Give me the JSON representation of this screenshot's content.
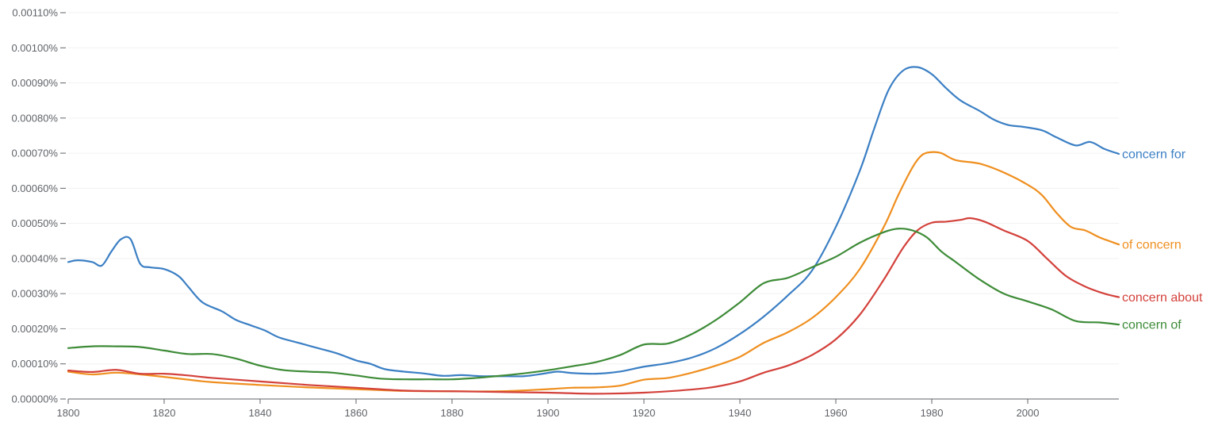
{
  "chart_data": {
    "type": "line",
    "title": "",
    "xlabel": "",
    "ylabel": "",
    "xlim": [
      1800,
      2019
    ],
    "ylim": [
      0,
      0.0011
    ],
    "grid": true,
    "x_ticks": [
      1800,
      1820,
      1840,
      1860,
      1880,
      1900,
      1920,
      1940,
      1960,
      1980,
      2000
    ],
    "x_tick_labels": [
      "1800",
      "1820",
      "1840",
      "1860",
      "1880",
      "1900",
      "1920",
      "1940",
      "1960",
      "1980",
      "2000"
    ],
    "y_ticks": [
      0,
      0.0001,
      0.0002,
      0.0003,
      0.0004,
      0.0005,
      0.0006,
      0.0007,
      0.0008,
      0.0009,
      0.001,
      0.0011
    ],
    "y_tick_labels": [
      "0.00000%",
      "0.00010%",
      "0.00020%",
      "0.00030%",
      "0.00040%",
      "0.00050%",
      "0.00060%",
      "0.00070%",
      "0.00080%",
      "0.00090%",
      "0.00100%",
      "0.00110%"
    ],
    "legend_placement": "inline-right",
    "series": [
      {
        "name": "concern for",
        "color": "#3b7fc4",
        "points": [
          [
            1800,
            0.00039
          ],
          [
            1802,
            0.000395
          ],
          [
            1805,
            0.00039
          ],
          [
            1807,
            0.00038
          ],
          [
            1809,
            0.00042
          ],
          [
            1811,
            0.000455
          ],
          [
            1813,
            0.000455
          ],
          [
            1815,
            0.000385
          ],
          [
            1817,
            0.000375
          ],
          [
            1820,
            0.00037
          ],
          [
            1823,
            0.00035
          ],
          [
            1825,
            0.00032
          ],
          [
            1828,
            0.000275
          ],
          [
            1832,
            0.00025
          ],
          [
            1835,
            0.000225
          ],
          [
            1838,
            0.00021
          ],
          [
            1841,
            0.000195
          ],
          [
            1844,
            0.000175
          ],
          [
            1848,
            0.00016
          ],
          [
            1852,
            0.000145
          ],
          [
            1856,
            0.00013
          ],
          [
            1860,
            0.00011
          ],
          [
            1863,
            0.0001
          ],
          [
            1866,
            8.5e-05
          ],
          [
            1870,
            7.8e-05
          ],
          [
            1874,
            7.3e-05
          ],
          [
            1878,
            6.6e-05
          ],
          [
            1882,
            6.8e-05
          ],
          [
            1886,
            6.5e-05
          ],
          [
            1890,
            6.5e-05
          ],
          [
            1895,
            6.5e-05
          ],
          [
            1899,
            7.2e-05
          ],
          [
            1902,
            7.8e-05
          ],
          [
            1905,
            7.4e-05
          ],
          [
            1910,
            7.2e-05
          ],
          [
            1915,
            7.8e-05
          ],
          [
            1920,
            9.2e-05
          ],
          [
            1925,
            0.000102
          ],
          [
            1930,
            0.000118
          ],
          [
            1935,
            0.000145
          ],
          [
            1940,
            0.000185
          ],
          [
            1945,
            0.000235
          ],
          [
            1950,
            0.000295
          ],
          [
            1955,
            0.000365
          ],
          [
            1960,
            0.00049
          ],
          [
            1965,
            0.00065
          ],
          [
            1968,
            0.00077
          ],
          [
            1971,
            0.00088
          ],
          [
            1974,
            0.000935
          ],
          [
            1977,
            0.000945
          ],
          [
            1980,
            0.000925
          ],
          [
            1983,
            0.000885
          ],
          [
            1986,
            0.00085
          ],
          [
            1990,
            0.00082
          ],
          [
            1993,
            0.000795
          ],
          [
            1996,
            0.00078
          ],
          [
            1999,
            0.000775
          ],
          [
            2003,
            0.000765
          ],
          [
            2006,
            0.000745
          ],
          [
            2010,
            0.000722
          ],
          [
            2013,
            0.000732
          ],
          [
            2016,
            0.000712
          ],
          [
            2019,
            0.000698
          ]
        ]
      },
      {
        "name": "of concern",
        "color": "#ef8f1f",
        "points": [
          [
            1800,
            7.8e-05
          ],
          [
            1805,
            7e-05
          ],
          [
            1810,
            7.5e-05
          ],
          [
            1815,
            7e-05
          ],
          [
            1820,
            6.3e-05
          ],
          [
            1825,
            5.5e-05
          ],
          [
            1830,
            4.8e-05
          ],
          [
            1840,
            4e-05
          ],
          [
            1850,
            3.3e-05
          ],
          [
            1860,
            2.8e-05
          ],
          [
            1870,
            2.3e-05
          ],
          [
            1880,
            2.2e-05
          ],
          [
            1890,
            2.2e-05
          ],
          [
            1900,
            2.8e-05
          ],
          [
            1905,
            3.2e-05
          ],
          [
            1910,
            3.3e-05
          ],
          [
            1915,
            3.8e-05
          ],
          [
            1920,
            5.5e-05
          ],
          [
            1925,
            6e-05
          ],
          [
            1930,
            7.5e-05
          ],
          [
            1935,
            9.5e-05
          ],
          [
            1940,
            0.00012
          ],
          [
            1945,
            0.00016
          ],
          [
            1950,
            0.00019
          ],
          [
            1955,
            0.00023
          ],
          [
            1960,
            0.00029
          ],
          [
            1965,
            0.00037
          ],
          [
            1970,
            0.00049
          ],
          [
            1973,
            0.00058
          ],
          [
            1976,
            0.00066
          ],
          [
            1978,
            0.000695
          ],
          [
            1980,
            0.000703
          ],
          [
            1982,
            0.0007
          ],
          [
            1985,
            0.00068
          ],
          [
            1990,
            0.00067
          ],
          [
            1995,
            0.000645
          ],
          [
            2000,
            0.00061
          ],
          [
            2003,
            0.00058
          ],
          [
            2006,
            0.00053
          ],
          [
            2009,
            0.00049
          ],
          [
            2012,
            0.00048
          ],
          [
            2015,
            0.00046
          ],
          [
            2019,
            0.00044
          ]
        ]
      },
      {
        "name": "concern about",
        "color": "#d3413b",
        "points": [
          [
            1800,
            8.1e-05
          ],
          [
            1805,
            7.7e-05
          ],
          [
            1810,
            8.3e-05
          ],
          [
            1815,
            7.2e-05
          ],
          [
            1820,
            7.2e-05
          ],
          [
            1825,
            6.7e-05
          ],
          [
            1830,
            6e-05
          ],
          [
            1840,
            5e-05
          ],
          [
            1850,
            4e-05
          ],
          [
            1860,
            3.2e-05
          ],
          [
            1870,
            2.4e-05
          ],
          [
            1880,
            2.2e-05
          ],
          [
            1890,
            2e-05
          ],
          [
            1900,
            1.8e-05
          ],
          [
            1910,
            1.5e-05
          ],
          [
            1920,
            1.8e-05
          ],
          [
            1930,
            2.7e-05
          ],
          [
            1935,
            3.5e-05
          ],
          [
            1940,
            5e-05
          ],
          [
            1945,
            7.5e-05
          ],
          [
            1950,
            9.5e-05
          ],
          [
            1955,
            0.000125
          ],
          [
            1960,
            0.00017
          ],
          [
            1965,
            0.00024
          ],
          [
            1970,
            0.00034
          ],
          [
            1974,
            0.00043
          ],
          [
            1977,
            0.00048
          ],
          [
            1980,
            0.000502
          ],
          [
            1983,
            0.000505
          ],
          [
            1986,
            0.00051
          ],
          [
            1988,
            0.000515
          ],
          [
            1991,
            0.000505
          ],
          [
            1995,
            0.00048
          ],
          [
            2000,
            0.00045
          ],
          [
            2004,
            0.0004
          ],
          [
            2008,
            0.00035
          ],
          [
            2012,
            0.00032
          ],
          [
            2016,
            0.0003
          ],
          [
            2019,
            0.00029
          ]
        ]
      },
      {
        "name": "concern of",
        "color": "#3d8b37",
        "points": [
          [
            1800,
            0.000145
          ],
          [
            1805,
            0.00015
          ],
          [
            1810,
            0.00015
          ],
          [
            1815,
            0.000148
          ],
          [
            1820,
            0.000138
          ],
          [
            1825,
            0.000128
          ],
          [
            1830,
            0.000128
          ],
          [
            1835,
            0.000115
          ],
          [
            1840,
            9.5e-05
          ],
          [
            1845,
            8.2e-05
          ],
          [
            1850,
            7.8e-05
          ],
          [
            1855,
            7.5e-05
          ],
          [
            1860,
            6.7e-05
          ],
          [
            1865,
            5.8e-05
          ],
          [
            1870,
            5.6e-05
          ],
          [
            1875,
            5.6e-05
          ],
          [
            1880,
            5.6e-05
          ],
          [
            1885,
            6e-05
          ],
          [
            1890,
            6.6e-05
          ],
          [
            1895,
            7.3e-05
          ],
          [
            1900,
            8.2e-05
          ],
          [
            1905,
            9.3e-05
          ],
          [
            1910,
            0.000105
          ],
          [
            1915,
            0.000125
          ],
          [
            1920,
            0.000155
          ],
          [
            1925,
            0.000158
          ],
          [
            1930,
            0.000185
          ],
          [
            1935,
            0.000225
          ],
          [
            1940,
            0.000275
          ],
          [
            1945,
            0.00033
          ],
          [
            1950,
            0.000345
          ],
          [
            1955,
            0.000375
          ],
          [
            1960,
            0.000405
          ],
          [
            1965,
            0.000445
          ],
          [
            1970,
            0.000475
          ],
          [
            1973,
            0.000485
          ],
          [
            1976,
            0.00048
          ],
          [
            1979,
            0.00046
          ],
          [
            1982,
            0.00042
          ],
          [
            1985,
            0.00039
          ],
          [
            1990,
            0.00034
          ],
          [
            1995,
            0.0003
          ],
          [
            2000,
            0.000278
          ],
          [
            2005,
            0.000255
          ],
          [
            2010,
            0.000222
          ],
          [
            2015,
            0.000218
          ],
          [
            2019,
            0.000212
          ]
        ]
      }
    ]
  }
}
